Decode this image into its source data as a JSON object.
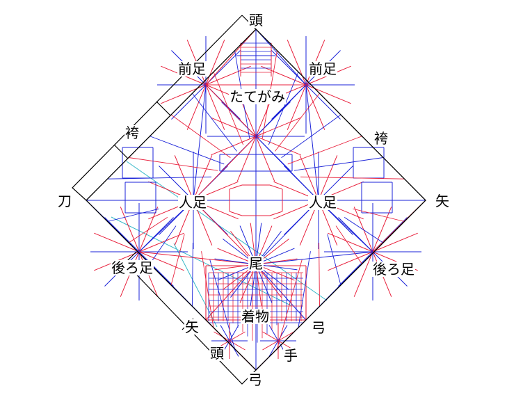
{
  "diagram": {
    "colors": {
      "mountain": "#e8203c",
      "valley": "#1a22d8",
      "guide": "#36b8c8",
      "outline": "#000000",
      "background": "#ffffff"
    },
    "labels": {
      "top_head": "頭",
      "front_leg_left": "前足",
      "front_leg_right": "前足",
      "mane": "たてがみ",
      "hakama_left": "袴",
      "hakama_right": "袴",
      "sword": "刀",
      "arrow_right": "矢",
      "human_leg_left": "人足",
      "human_leg_right": "人足",
      "hind_leg_left": "後ろ足",
      "hind_leg_right": "後ろ足",
      "tail": "尾",
      "kimono": "着物",
      "arrow_bottom": "矢",
      "bow_right": "弓",
      "head_bottom": "頭",
      "hand": "手",
      "bow_bottom": "弓"
    }
  }
}
